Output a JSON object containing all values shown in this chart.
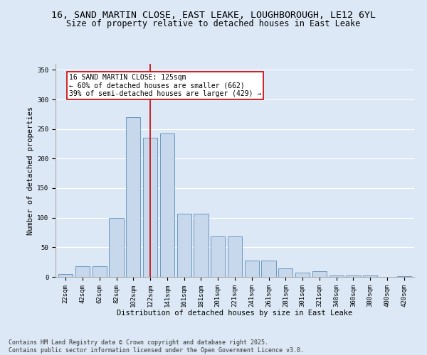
{
  "title_line1": "16, SAND MARTIN CLOSE, EAST LEAKE, LOUGHBOROUGH, LE12 6YL",
  "title_line2": "Size of property relative to detached houses in East Leake",
  "xlabel": "Distribution of detached houses by size in East Leake",
  "ylabel": "Number of detached properties",
  "categories": [
    "22sqm",
    "42sqm",
    "62sqm",
    "82sqm",
    "102sqm",
    "122sqm",
    "141sqm",
    "161sqm",
    "181sqm",
    "201sqm",
    "221sqm",
    "241sqm",
    "261sqm",
    "281sqm",
    "301sqm",
    "321sqm",
    "340sqm",
    "360sqm",
    "380sqm",
    "400sqm",
    "420sqm"
  ],
  "values": [
    5,
    18,
    18,
    100,
    270,
    235,
    242,
    107,
    107,
    68,
    68,
    28,
    28,
    14,
    7,
    10,
    3,
    3,
    2,
    0,
    1
  ],
  "bar_color": "#c8d8ec",
  "bar_edge_color": "#5b8db8",
  "highlight_index": 5,
  "highlight_line_color": "#cc0000",
  "annotation_box_text": "16 SAND MARTIN CLOSE: 125sqm\n← 60% of detached houses are smaller (662)\n39% of semi-detached houses are larger (429) →",
  "annotation_box_color": "#cc0000",
  "annotation_box_fill": "#ffffff",
  "ylim": [
    0,
    360
  ],
  "yticks": [
    0,
    50,
    100,
    150,
    200,
    250,
    300,
    350
  ],
  "footer_text": "Contains HM Land Registry data © Crown copyright and database right 2025.\nContains public sector information licensed under the Open Government Licence v3.0.",
  "bg_color": "#dce8f5",
  "plot_bg_color": "#dce8f5",
  "grid_color": "#ffffff",
  "title_fontsize": 9.5,
  "subtitle_fontsize": 8.5,
  "axis_label_fontsize": 7.5,
  "tick_fontsize": 6.5,
  "annotation_fontsize": 7,
  "footer_fontsize": 6
}
